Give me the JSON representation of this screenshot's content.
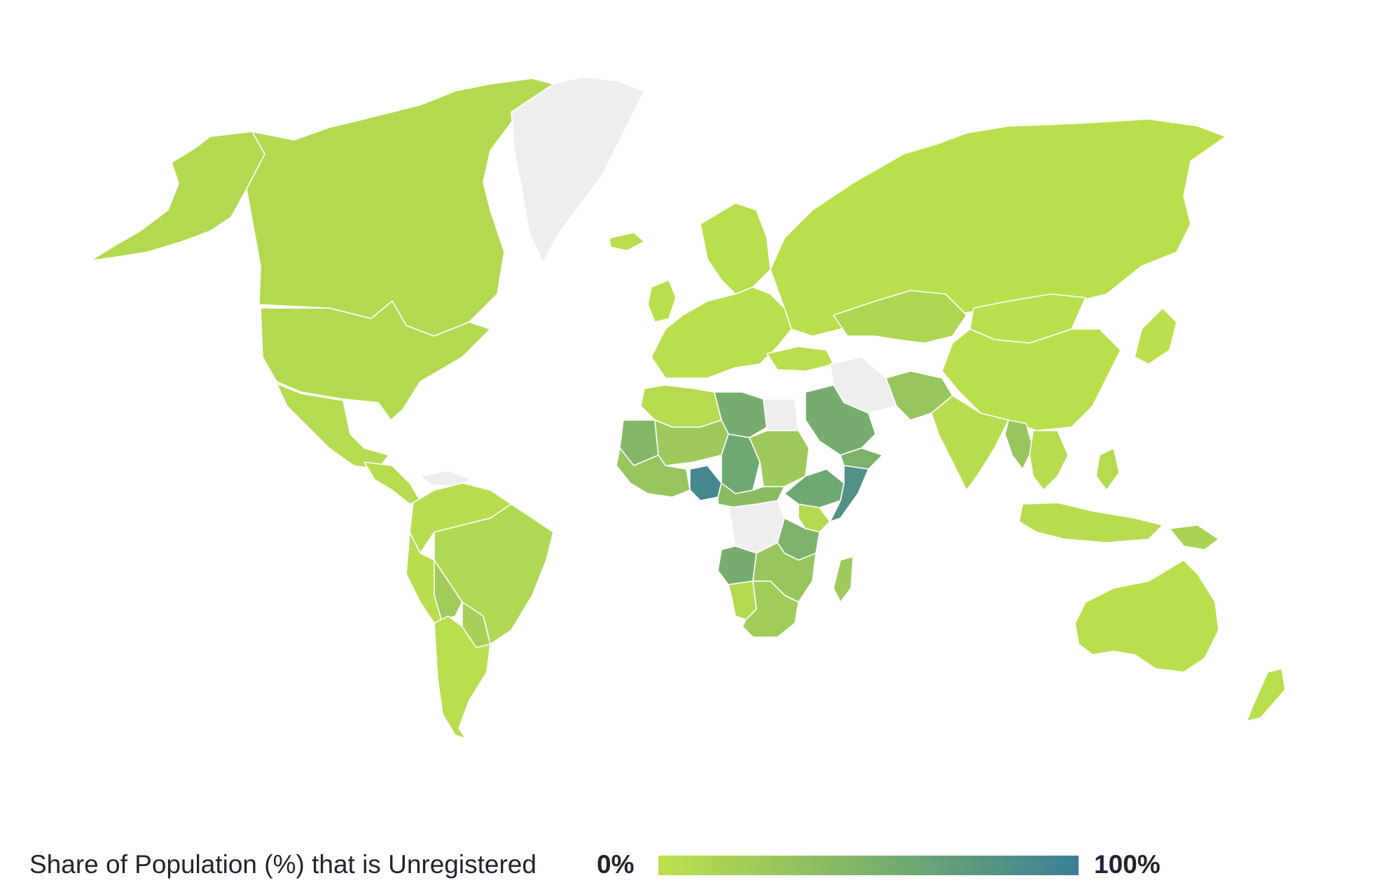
{
  "legend": {
    "title": "Share of Population (%) that is Unregistered",
    "min_label": "0%",
    "max_label": "100%",
    "color_low": "#bde14c",
    "color_mid": "#7db26a",
    "color_high": "#3a7f96"
  },
  "colors": {
    "no_data": "#eeeeee",
    "background": "#ffffff",
    "border": "#ffffff"
  },
  "regions": [
    {
      "id": "alaska",
      "value": 8
    },
    {
      "id": "canada",
      "value": 8
    },
    {
      "id": "usa",
      "value": 8
    },
    {
      "id": "greenland",
      "value": null
    },
    {
      "id": "iceland",
      "value": 3
    },
    {
      "id": "mexico",
      "value": 6
    },
    {
      "id": "central-america",
      "value": 5
    },
    {
      "id": "caribbean",
      "value": null
    },
    {
      "id": "colombia-venezuela",
      "value": 5
    },
    {
      "id": "peru",
      "value": 4
    },
    {
      "id": "brazil",
      "value": 10
    },
    {
      "id": "bolivia",
      "value": 22
    },
    {
      "id": "paraguay",
      "value": 18
    },
    {
      "id": "argentina-chile",
      "value": 3
    },
    {
      "id": "europe",
      "value": 3
    },
    {
      "id": "scandinavia",
      "value": 3
    },
    {
      "id": "uk-ireland",
      "value": 2
    },
    {
      "id": "russia",
      "value": 2
    },
    {
      "id": "kazakhstan",
      "value": 12
    },
    {
      "id": "china",
      "value": 2
    },
    {
      "id": "mongolia",
      "value": 2
    },
    {
      "id": "japan",
      "value": 1
    },
    {
      "id": "iran",
      "value": null
    },
    {
      "id": "turkey",
      "value": 3
    },
    {
      "id": "afghanistan-pakistan",
      "value": 30
    },
    {
      "id": "india",
      "value": 5
    },
    {
      "id": "myanmar",
      "value": 30
    },
    {
      "id": "southeast-asia",
      "value": 5
    },
    {
      "id": "indonesia",
      "value": 5
    },
    {
      "id": "philippines",
      "value": 6
    },
    {
      "id": "papua-new-guinea",
      "value": 15
    },
    {
      "id": "australia",
      "value": 2
    },
    {
      "id": "new-zealand",
      "value": 2
    },
    {
      "id": "morocco-algeria",
      "value": 6
    },
    {
      "id": "libya",
      "value": 55
    },
    {
      "id": "egypt",
      "value": null
    },
    {
      "id": "mauritania",
      "value": 45
    },
    {
      "id": "mali-niger",
      "value": 25
    },
    {
      "id": "chad",
      "value": 60
    },
    {
      "id": "sudan",
      "value": 25
    },
    {
      "id": "west-africa",
      "value": 30
    },
    {
      "id": "nigeria",
      "value": 92
    },
    {
      "id": "central-africa",
      "value": 40
    },
    {
      "id": "drc",
      "value": null
    },
    {
      "id": "ethiopia",
      "value": 60
    },
    {
      "id": "somalia",
      "value": 82
    },
    {
      "id": "kenya",
      "value": 8
    },
    {
      "id": "tanzania",
      "value": 50
    },
    {
      "id": "angola",
      "value": 55
    },
    {
      "id": "zambia-mozambique",
      "value": 30
    },
    {
      "id": "namibia",
      "value": 8
    },
    {
      "id": "southern-africa",
      "value": 22
    },
    {
      "id": "madagascar",
      "value": 25
    },
    {
      "id": "saudi-arabia",
      "value": 55
    },
    {
      "id": "yemen",
      "value": 50
    }
  ]
}
